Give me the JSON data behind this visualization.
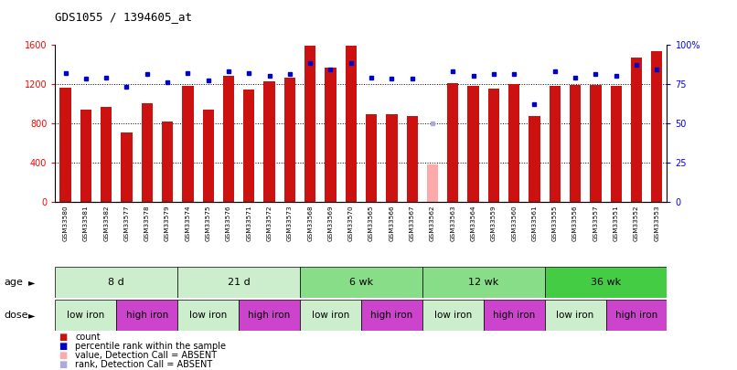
{
  "title": "GDS1055 / 1394605_at",
  "samples": [
    "GSM33580",
    "GSM33581",
    "GSM33582",
    "GSM33577",
    "GSM33578",
    "GSM33579",
    "GSM33574",
    "GSM33575",
    "GSM33576",
    "GSM33571",
    "GSM33572",
    "GSM33573",
    "GSM33568",
    "GSM33569",
    "GSM33570",
    "GSM33565",
    "GSM33566",
    "GSM33567",
    "GSM33562",
    "GSM33563",
    "GSM33564",
    "GSM33559",
    "GSM33560",
    "GSM33561",
    "GSM33555",
    "GSM33556",
    "GSM33557",
    "GSM33551",
    "GSM33552",
    "GSM33553"
  ],
  "counts": [
    1160,
    940,
    960,
    700,
    1000,
    820,
    1180,
    940,
    1280,
    1140,
    1220,
    1260,
    1590,
    1360,
    1590,
    890,
    890,
    870,
    null,
    1210,
    1180,
    1150,
    1200,
    870,
    1180,
    1190,
    1190,
    1180,
    1470,
    1530
  ],
  "absent_counts": [
    null,
    null,
    null,
    null,
    null,
    null,
    null,
    null,
    null,
    null,
    null,
    null,
    null,
    null,
    null,
    null,
    null,
    null,
    380,
    null,
    null,
    null,
    null,
    null,
    null,
    null,
    null,
    null,
    null,
    null
  ],
  "percentile_ranks": [
    82,
    78,
    79,
    73,
    81,
    76,
    82,
    77,
    83,
    82,
    80,
    81,
    88,
    84,
    88,
    79,
    78,
    78,
    null,
    83,
    80,
    81,
    81,
    62,
    83,
    79,
    81,
    80,
    87,
    84
  ],
  "absent_ranks": [
    null,
    null,
    null,
    null,
    null,
    null,
    null,
    null,
    null,
    null,
    null,
    null,
    null,
    null,
    null,
    null,
    null,
    null,
    50,
    null,
    null,
    null,
    null,
    null,
    null,
    null,
    null,
    null,
    null,
    null
  ],
  "age_groups": [
    {
      "label": "8 d",
      "start": 0,
      "end": 5,
      "color": "#cceecc"
    },
    {
      "label": "21 d",
      "start": 6,
      "end": 11,
      "color": "#cceecc"
    },
    {
      "label": "6 wk",
      "start": 12,
      "end": 17,
      "color": "#88dd88"
    },
    {
      "label": "12 wk",
      "start": 18,
      "end": 23,
      "color": "#88dd88"
    },
    {
      "label": "36 wk",
      "start": 24,
      "end": 29,
      "color": "#44cc44"
    }
  ],
  "dose_groups": [
    {
      "label": "low iron",
      "start": 0,
      "end": 2,
      "color": "#cceecc"
    },
    {
      "label": "high iron",
      "start": 3,
      "end": 5,
      "color": "#cc44cc"
    },
    {
      "label": "low iron",
      "start": 6,
      "end": 8,
      "color": "#cceecc"
    },
    {
      "label": "high iron",
      "start": 9,
      "end": 11,
      "color": "#cc44cc"
    },
    {
      "label": "low iron",
      "start": 12,
      "end": 14,
      "color": "#cceecc"
    },
    {
      "label": "high iron",
      "start": 15,
      "end": 17,
      "color": "#cc44cc"
    },
    {
      "label": "low iron",
      "start": 18,
      "end": 20,
      "color": "#cceecc"
    },
    {
      "label": "high iron",
      "start": 21,
      "end": 23,
      "color": "#cc44cc"
    },
    {
      "label": "low iron",
      "start": 24,
      "end": 26,
      "color": "#cceecc"
    },
    {
      "label": "high iron",
      "start": 27,
      "end": 29,
      "color": "#cc44cc"
    }
  ],
  "bar_color_normal": "#cc1111",
  "bar_color_absent": "#ffaaaa",
  "dot_color_normal": "#0000cc",
  "dot_color_absent": "#aaaadd",
  "ylim_left": [
    0,
    1600
  ],
  "ylim_right": [
    0,
    100
  ],
  "yticks_left": [
    0,
    400,
    800,
    1200,
    1600
  ],
  "yticks_right": [
    0,
    25,
    50,
    75,
    100
  ],
  "background_color": "#ffffff"
}
